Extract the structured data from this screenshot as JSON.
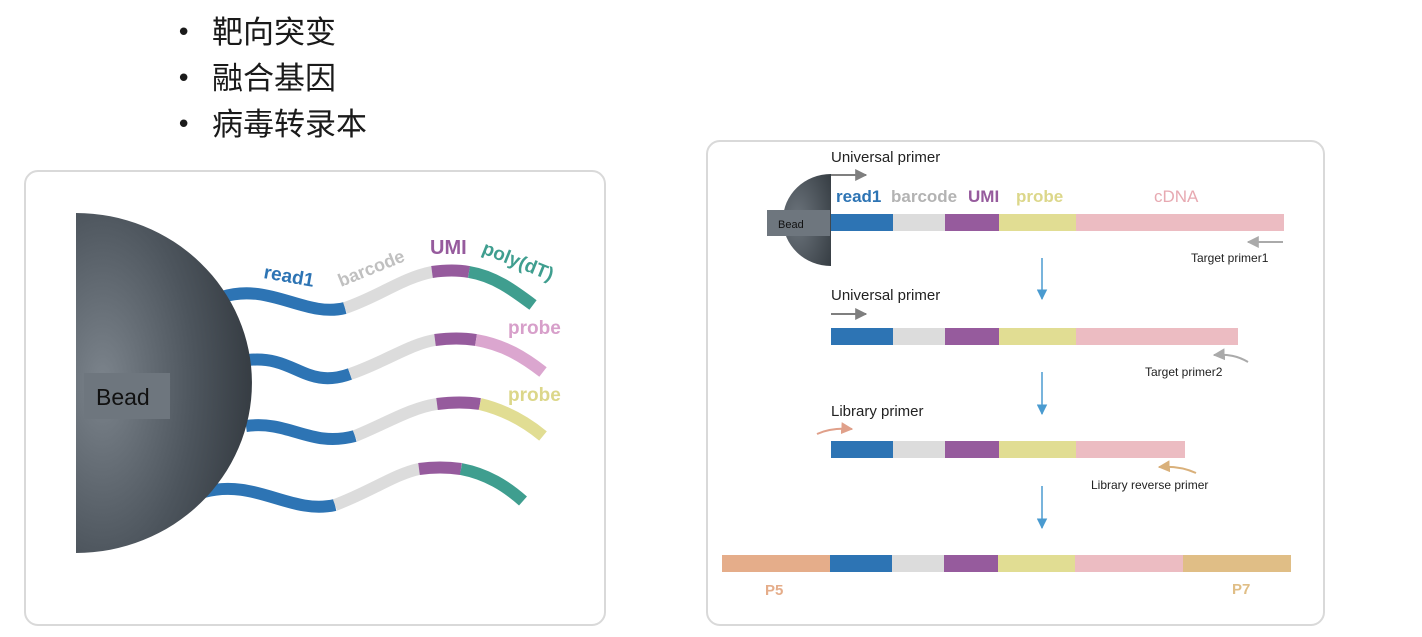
{
  "bullets": [
    "靶向突变",
    "融合基因",
    "病毒转录本"
  ],
  "left": {
    "bead_label": "Bead",
    "read1_label": "read1",
    "barcode_label": "barcode",
    "umi_label": "UMI",
    "polydt_label": "poly(dT)",
    "probe_label_1": "probe",
    "probe_label_2": "probe"
  },
  "right": {
    "universal_primer_1": "Universal primer",
    "bead_label": "Bead",
    "read1_label": "read1",
    "barcode_label": "barcode",
    "umi_label": "UMI",
    "probe_label": "probe",
    "cdna_label": "cDNA",
    "target_primer_1": "Target primer1",
    "universal_primer_2": "Universal primer",
    "target_primer_2": "Target primer2",
    "library_primer": "Library primer",
    "library_reverse_primer": "Library reverse primer",
    "p5_label": "P5",
    "p7_label": "P7"
  },
  "colors": {
    "read1": "#2d74b4",
    "barcode": "#dcdcdc",
    "umi": "#965b9d",
    "polydt": "#3f9e8f",
    "probe_pink": "#dba6cf",
    "probe_yellow": "#e1dd93",
    "cdna": "#ecbcc2",
    "p5": "#e5ad8a",
    "p7": "#e0be86",
    "bead": "#4a5158"
  }
}
